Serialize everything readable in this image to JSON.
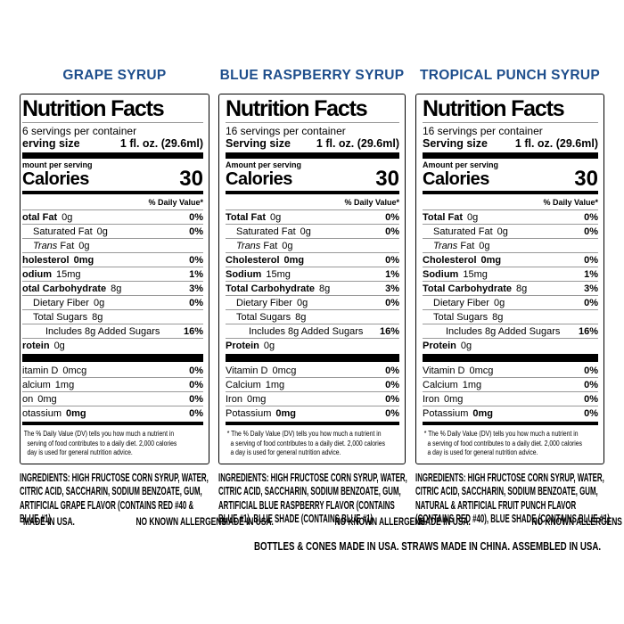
{
  "colors": {
    "header_blue": "#1E4E8C",
    "bar_black": "#000000"
  },
  "labels": [
    {
      "header": "GRAPE SYRUP",
      "title": "Nutrition Facts",
      "servings": "6 servings per container",
      "serving_size_label": "erving size",
      "serving_size_value": "1 fl. oz. (29.6ml)",
      "amount_per_serving": "mount per serving",
      "calories_label": "Calories",
      "calories_value": "30",
      "dv_header": "% Daily Value*",
      "rows": [
        {
          "name": "otal Fat",
          "amount": "0g",
          "dv": "0%",
          "bold_name": true
        },
        {
          "name": "Saturated Fat",
          "amount": "0g",
          "dv": "0%",
          "indent": 1
        },
        {
          "italic_prefix": "Trans",
          "name": " Fat",
          "amount": "0g",
          "indent": 1
        },
        {
          "name": "holesterol",
          "amount": "0mg",
          "dv": "0%",
          "bold_name": true,
          "bold_amount": true
        },
        {
          "name": "odium",
          "amount": "15mg",
          "dv": "1%",
          "bold_name": true
        },
        {
          "name": "otal Carbohydrate",
          "amount": "8g",
          "dv": "3%",
          "bold_name": true
        },
        {
          "name": "Dietary Fiber",
          "amount": "0g",
          "dv": "0%",
          "indent": 1
        },
        {
          "name": "Total Sugars",
          "amount": "8g",
          "indent": 1
        },
        {
          "name": "Includes 8g Added Sugars",
          "dv": "16%",
          "indent": 2
        },
        {
          "name": "rotein",
          "amount": "0g",
          "bold_name": true
        }
      ],
      "vitamins": [
        {
          "name": "itamin D",
          "amount": "0mcg",
          "dv": "0%"
        },
        {
          "name": "alcium",
          "amount": "1mg",
          "dv": "0%"
        },
        {
          "name": "on",
          "amount": "0mg",
          "dv": "0%"
        },
        {
          "name": "otassium",
          "amount": "0mg",
          "dv": "0%",
          "bold_amount": true
        }
      ],
      "footnote": "The % Daily Value (DV) tells you how much a nutrient in\n  serving of food contributes to a daily diet. 2,000 calories\n  day is used for general nutrition advice.",
      "ingredients": "INGREDIENTS: HIGH FRUCTOSE CORN SYRUP, WATER,\nCITRIC ACID, SACCHARIN, SODIUM BENZOATE, GUM,\nARTIFICIAL GRAPE FLAVOR (CONTAINS RED #40 &\nBLUE #1)",
      "made_in": "MADE IN USA.",
      "allergens": "NO KNOWN ALLERGENS"
    },
    {
      "header": "BLUE RASPBERRY SYRUP",
      "title": "Nutrition Facts",
      "servings": "16 servings per container",
      "serving_size_label": "Serving size",
      "serving_size_value": "1 fl. oz. (29.6ml)",
      "amount_per_serving": "Amount per serving",
      "calories_label": "Calories",
      "calories_value": "30",
      "dv_header": "% Daily Value*",
      "rows": [
        {
          "name": "Total Fat",
          "amount": "0g",
          "dv": "0%",
          "bold_name": true
        },
        {
          "name": "Saturated Fat",
          "amount": "0g",
          "dv": "0%",
          "indent": 1
        },
        {
          "italic_prefix": "Trans",
          "name": " Fat",
          "amount": "0g",
          "indent": 1
        },
        {
          "name": "Cholesterol",
          "amount": "0mg",
          "dv": "0%",
          "bold_name": true,
          "bold_amount": true
        },
        {
          "name": "Sodium",
          "amount": "15mg",
          "dv": "1%",
          "bold_name": true
        },
        {
          "name": "Total Carbohydrate",
          "amount": "8g",
          "dv": "3%",
          "bold_name": true
        },
        {
          "name": "Dietary Fiber",
          "amount": "0g",
          "dv": "0%",
          "indent": 1
        },
        {
          "name": "Total Sugars",
          "amount": "8g",
          "indent": 1
        },
        {
          "name": "Includes 8g Added Sugars",
          "dv": "16%",
          "indent": 2
        },
        {
          "name": "Protein",
          "amount": "0g",
          "bold_name": true
        }
      ],
      "vitamins": [
        {
          "name": "Vitamin D",
          "amount": "0mcg",
          "dv": "0%"
        },
        {
          "name": "Calcium",
          "amount": "1mg",
          "dv": "0%"
        },
        {
          "name": "Iron",
          "amount": "0mg",
          "dv": "0%"
        },
        {
          "name": "Potassium",
          "amount": "0mg",
          "dv": "0%",
          "bold_amount": true
        }
      ],
      "footnote": "* The % Daily Value (DV) tells you how much a nutrient in\n  a serving of food contributes to a daily diet. 2,000 calories\n  a day is used for general nutrition advice.",
      "ingredients": "INGREDIENTS: HIGH FRUCTOSE CORN SYRUP, WATER,\nCITRIC ACID, SACCHARIN, SODIUM BENZOATE, GUM,\nARTIFICIAL BLUE RASPBERRY FLAVOR (CONTAINS\nBLUE #1), BLUE SHADE (CONTAINS BLUE #1)",
      "made_in": "MADE IN USA.",
      "allergens": "NO KNOWN ALLERGENS"
    },
    {
      "header": "TROPICAL PUNCH SYRUP",
      "title": "Nutrition Facts",
      "servings": "16 servings per container",
      "serving_size_label": "Serving size",
      "serving_size_value": "1 fl. oz. (29.6ml)",
      "amount_per_serving": "Amount per serving",
      "calories_label": "Calories",
      "calories_value": "30",
      "dv_header": "% Daily Value*",
      "rows": [
        {
          "name": "Total Fat",
          "amount": "0g",
          "dv": "0%",
          "bold_name": true
        },
        {
          "name": "Saturated Fat",
          "amount": "0g",
          "dv": "0%",
          "indent": 1
        },
        {
          "italic_prefix": "Trans",
          "name": " Fat",
          "amount": "0g",
          "indent": 1
        },
        {
          "name": "Cholesterol",
          "amount": "0mg",
          "dv": "0%",
          "bold_name": true,
          "bold_amount": true
        },
        {
          "name": "Sodium",
          "amount": "15mg",
          "dv": "1%",
          "bold_name": true
        },
        {
          "name": "Total Carbohydrate",
          "amount": "8g",
          "dv": "3%",
          "bold_name": true
        },
        {
          "name": "Dietary Fiber",
          "amount": "0g",
          "dv": "0%",
          "indent": 1
        },
        {
          "name": "Total Sugars",
          "amount": "8g",
          "indent": 1
        },
        {
          "name": "Includes 8g Added Sugars",
          "dv": "16%",
          "indent": 2
        },
        {
          "name": "Protein",
          "amount": "0g",
          "bold_name": true
        }
      ],
      "vitamins": [
        {
          "name": "Vitamin D",
          "amount": "0mcg",
          "dv": "0%"
        },
        {
          "name": "Calcium",
          "amount": "1mg",
          "dv": "0%"
        },
        {
          "name": "Iron",
          "amount": "0mg",
          "dv": "0%"
        },
        {
          "name": "Potassium",
          "amount": "0mg",
          "dv": "0%",
          "bold_amount": true
        }
      ],
      "footnote": "* The % Daily Value (DV) tells you how much a nutrient in\n  a serving of food contributes to a daily diet. 2,000 calories\n  a day is used for general nutrition advice.",
      "ingredients": "INGREDIENTS: HIGH FRUCTOSE CORN SYRUP, WATER,\nCITRIC ACID, SACCHARIN, SODIUM BENZOATE, GUM,\nNATURAL & ARTIFICIAL FRUIT PUNCH FLAVOR\n(CONTAINS RED #40), BLUE SHADE (CONTAINS BLUE #1)",
      "made_in": "MADE IN USA.",
      "allergens": "NO KNOWN ALLERGENS"
    }
  ],
  "footer": {
    "assembly_note": "BOTTLES & CONES MADE IN USA. STRAWS MADE IN CHINA. ASSEMBLED IN USA."
  }
}
